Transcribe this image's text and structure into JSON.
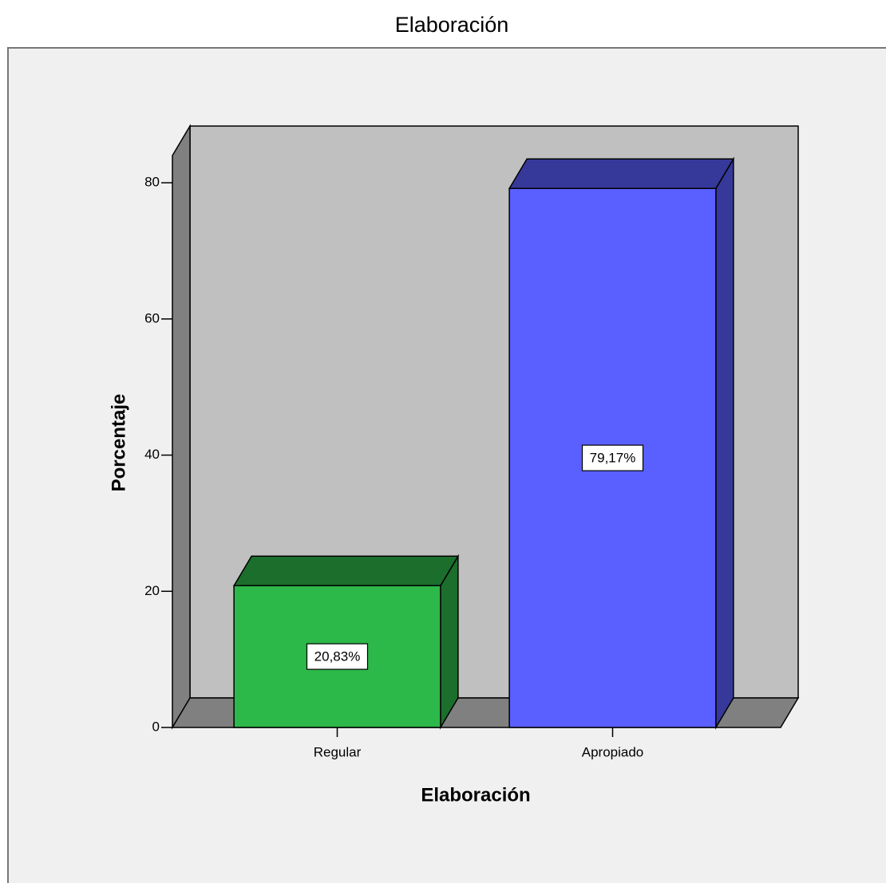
{
  "chart_data": {
    "type": "bar3d",
    "title": "Elaboración",
    "x_label": "Elaboración",
    "y_label": "Porcentaje",
    "categories": [
      "Regular",
      "Apropiado"
    ],
    "values": [
      20.83,
      79.17
    ],
    "value_labels": [
      "20,83%",
      "79,17%"
    ],
    "colors": [
      "#2db84a",
      "#5a5fff"
    ],
    "ylim": [
      0,
      84
    ],
    "yticks": [
      0,
      20,
      40,
      60,
      80
    ]
  }
}
